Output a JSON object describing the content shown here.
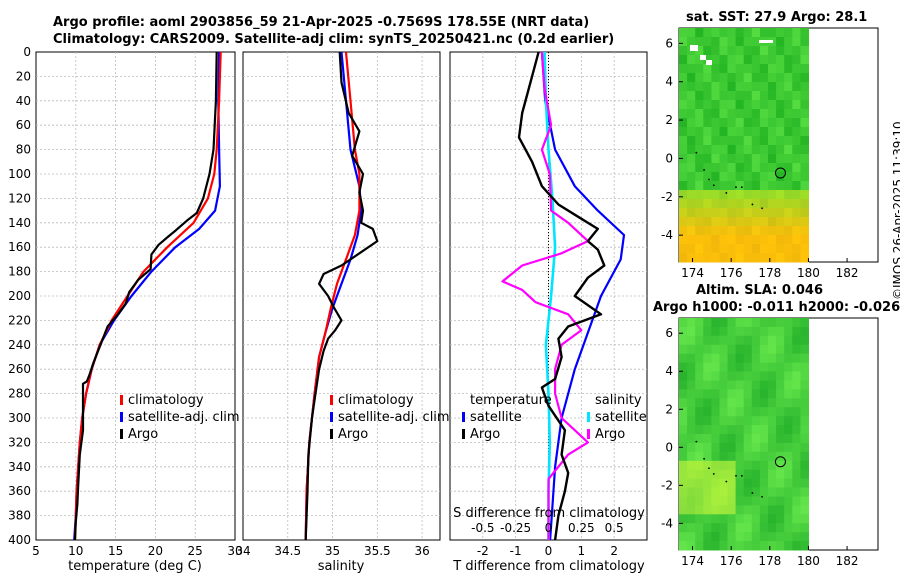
{
  "title": {
    "line1": "Argo profile: aoml 2903856_59 21-Apr-2025 -0.7569S 178.55E (NRT data)",
    "line2": "Climatology: CARS2009. Satellite-adj clim: synTS_20250421.nc (0.2d earlier)"
  },
  "colors": {
    "climatology": "#ff0000",
    "satellite": "#0000ff",
    "argo": "#000000",
    "argo_s": "#ff00ff",
    "sat_s": "#00e5ff",
    "map_green": "#33cc33"
  },
  "watermark": "©IMOS 26-Apr-2025 11:39:10",
  "chart_data": [
    {
      "type": "line",
      "id": "temperature",
      "xlabel": "temperature (deg C)",
      "ylim": [
        400,
        0
      ],
      "xlim": [
        5,
        30
      ],
      "xticks": [
        "5",
        "10",
        "15",
        "20",
        "25",
        "30"
      ],
      "yticks": [
        "0",
        "20",
        "40",
        "60",
        "80",
        "100",
        "120",
        "140",
        "160",
        "180",
        "200",
        "220",
        "240",
        "260",
        "280",
        "300",
        "320",
        "340",
        "360",
        "380",
        "400"
      ],
      "series": [
        {
          "name": "climatology",
          "points": [
            [
              28.2,
              0
            ],
            [
              28.0,
              40
            ],
            [
              27.7,
              80
            ],
            [
              27.4,
              100
            ],
            [
              26.6,
              120
            ],
            [
              24.8,
              140
            ],
            [
              21.5,
              160
            ],
            [
              18.5,
              180
            ],
            [
              16.5,
              200
            ],
            [
              14.5,
              220
            ],
            [
              13.0,
              240
            ],
            [
              12.0,
              260
            ],
            [
              11.3,
              280
            ],
            [
              10.8,
              300
            ],
            [
              10.5,
              320
            ],
            [
              10.3,
              340
            ],
            [
              10.1,
              360
            ],
            [
              10.0,
              380
            ],
            [
              9.9,
              400
            ]
          ]
        },
        {
          "name": "satellite-adj. clim",
          "points": [
            [
              28.0,
              0
            ],
            [
              27.9,
              40
            ],
            [
              28.0,
              80
            ],
            [
              28.1,
              110
            ],
            [
              27.5,
              130
            ],
            [
              25.5,
              145
            ],
            [
              22.5,
              160
            ],
            [
              19.5,
              180
            ],
            [
              17.0,
              200
            ],
            [
              14.8,
              220
            ],
            [
              13.0,
              240
            ],
            [
              12.0,
              260
            ],
            [
              11.3,
              280
            ],
            [
              10.8,
              300
            ],
            [
              10.5,
              320
            ],
            [
              10.3,
              340
            ],
            [
              10.1,
              360
            ],
            [
              10.0,
              380
            ],
            [
              9.8,
              400
            ]
          ]
        },
        {
          "name": "Argo",
          "points": [
            [
              27.7,
              0
            ],
            [
              27.6,
              40
            ],
            [
              27.3,
              80
            ],
            [
              26.8,
              100
            ],
            [
              26.0,
              120
            ],
            [
              25.2,
              132
            ],
            [
              24.0,
              138
            ],
            [
              22.6,
              146
            ],
            [
              21.5,
              152
            ],
            [
              20.4,
              158
            ],
            [
              19.5,
              166
            ],
            [
              19.4,
              178
            ],
            [
              17.8,
              187
            ],
            [
              16.7,
              197
            ],
            [
              16.3,
              206
            ],
            [
              15.3,
              215
            ],
            [
              14.0,
              225
            ],
            [
              13.1,
              240
            ],
            [
              12.2,
              255
            ],
            [
              11.7,
              265
            ],
            [
              11.4,
              270
            ],
            [
              10.9,
              272
            ],
            [
              10.9,
              310
            ],
            [
              10.5,
              330
            ],
            [
              10.3,
              355
            ],
            [
              10.2,
              370
            ],
            [
              10.0,
              385
            ],
            [
              9.9,
              400
            ]
          ]
        }
      ],
      "legend": [
        "climatology",
        "satellite-adj. clim",
        "Argo"
      ]
    },
    {
      "type": "line",
      "id": "salinity",
      "xlabel": "salinity",
      "ylim": [
        400,
        0
      ],
      "xlim": [
        34,
        36.2
      ],
      "xticks": [
        "34",
        "34.5",
        "35",
        "35.5",
        "36"
      ],
      "series": [
        {
          "name": "climatology",
          "points": [
            [
              35.15,
              0
            ],
            [
              35.2,
              40
            ],
            [
              35.25,
              80
            ],
            [
              35.3,
              100
            ],
            [
              35.3,
              130
            ],
            [
              35.25,
              150
            ],
            [
              35.15,
              170
            ],
            [
              35.05,
              190
            ],
            [
              34.98,
              210
            ],
            [
              34.92,
              230
            ],
            [
              34.85,
              250
            ],
            [
              34.8,
              280
            ],
            [
              34.74,
              320
            ],
            [
              34.71,
              360
            ],
            [
              34.7,
              400
            ]
          ]
        },
        {
          "name": "satellite-adj. clim",
          "points": [
            [
              35.1,
              0
            ],
            [
              35.15,
              40
            ],
            [
              35.2,
              80
            ],
            [
              35.3,
              110
            ],
            [
              35.32,
              130
            ],
            [
              35.28,
              150
            ],
            [
              35.2,
              170
            ],
            [
              35.1,
              190
            ],
            [
              35.0,
              210
            ],
            [
              34.92,
              230
            ],
            [
              34.85,
              250
            ],
            [
              34.8,
              280
            ],
            [
              34.74,
              320
            ],
            [
              34.71,
              360
            ],
            [
              34.7,
              400
            ]
          ]
        },
        {
          "name": "Argo",
          "points": [
            [
              35.08,
              0
            ],
            [
              35.1,
              25
            ],
            [
              35.18,
              50
            ],
            [
              35.3,
              65
            ],
            [
              35.22,
              85
            ],
            [
              35.34,
              100
            ],
            [
              35.3,
              115
            ],
            [
              35.34,
              130
            ],
            [
              35.32,
              140
            ],
            [
              35.45,
              145
            ],
            [
              35.5,
              155
            ],
            [
              35.3,
              165
            ],
            [
              35.1,
              175
            ],
            [
              34.9,
              182
            ],
            [
              34.85,
              190
            ],
            [
              34.95,
              200
            ],
            [
              35.02,
              210
            ],
            [
              35.1,
              220
            ],
            [
              35.03,
              228
            ],
            [
              34.95,
              235
            ],
            [
              34.9,
              245
            ],
            [
              34.85,
              260
            ],
            [
              34.8,
              285
            ],
            [
              34.77,
              300
            ],
            [
              34.73,
              330
            ],
            [
              34.72,
              360
            ],
            [
              34.7,
              400
            ]
          ]
        }
      ],
      "legend": [
        "climatology",
        "satellite-adj. clim",
        "Argo"
      ]
    },
    {
      "type": "line",
      "id": "difference",
      "xlabel": "T difference from climatology",
      "xlabel2": "S difference from climatology",
      "ylim": [
        400,
        0
      ],
      "xlim": [
        -3,
        3
      ],
      "xticks": [
        "-2",
        "-1",
        "0",
        "1",
        "2"
      ],
      "xticks2": [
        "-0.5",
        "-0.25",
        "0",
        "0.25",
        "0.5"
      ],
      "series": [
        {
          "name": "T satellite",
          "points": [
            [
              -0.2,
              0
            ],
            [
              -0.1,
              40
            ],
            [
              0.2,
              80
            ],
            [
              0.8,
              110
            ],
            [
              1.5,
              130
            ],
            [
              2.3,
              150
            ],
            [
              2.2,
              170
            ],
            [
              1.6,
              200
            ],
            [
              1.2,
              230
            ],
            [
              0.8,
              260
            ],
            [
              0.4,
              300
            ],
            [
              0.2,
              340
            ],
            [
              0.1,
              380
            ],
            [
              0.05,
              400
            ]
          ]
        },
        {
          "name": "T Argo",
          "points": [
            [
              -0.3,
              0
            ],
            [
              -0.6,
              30
            ],
            [
              -0.8,
              50
            ],
            [
              -0.9,
              70
            ],
            [
              -0.5,
              90
            ],
            [
              -0.2,
              110
            ],
            [
              0.3,
              125
            ],
            [
              0.9,
              135
            ],
            [
              1.5,
              145
            ],
            [
              1.2,
              155
            ],
            [
              1.5,
              162
            ],
            [
              1.7,
              175
            ],
            [
              1.2,
              185
            ],
            [
              0.8,
              200
            ],
            [
              1.6,
              215
            ],
            [
              0.6,
              225
            ],
            [
              0.3,
              235
            ],
            [
              0.4,
              250
            ],
            [
              0.2,
              268
            ],
            [
              -0.2,
              275
            ],
            [
              0.0,
              290
            ],
            [
              0.5,
              310
            ],
            [
              0.4,
              330
            ],
            [
              0.6,
              345
            ],
            [
              0.5,
              360
            ],
            [
              0.3,
              380
            ],
            [
              0.2,
              400
            ]
          ]
        },
        {
          "name": "S satellite",
          "points": [
            [
              -0.03,
              0
            ],
            [
              -0.02,
              40
            ],
            [
              0.0,
              80
            ],
            [
              0.03,
              120
            ],
            [
              0.05,
              160
            ],
            [
              0.02,
              200
            ],
            [
              -0.02,
              240
            ],
            [
              0.0,
              280
            ],
            [
              0.01,
              320
            ],
            [
              0.0,
              360
            ],
            [
              0.0,
              400
            ]
          ]
        },
        {
          "name": "S Argo",
          "points": [
            [
              -0.05,
              0
            ],
            [
              -0.03,
              30
            ],
            [
              0.02,
              60
            ],
            [
              -0.05,
              80
            ],
            [
              0.01,
              100
            ],
            [
              0.02,
              130
            ],
            [
              0.15,
              140
            ],
            [
              0.3,
              155
            ],
            [
              0.1,
              165
            ],
            [
              -0.2,
              175
            ],
            [
              -0.35,
              188
            ],
            [
              -0.2,
              195
            ],
            [
              -0.1,
              205
            ],
            [
              0.15,
              215
            ],
            [
              0.25,
              228
            ],
            [
              0.1,
              240
            ],
            [
              0.05,
              260
            ],
            [
              0.05,
              280
            ],
            [
              0.1,
              300
            ],
            [
              0.2,
              310
            ],
            [
              0.3,
              320
            ],
            [
              0.15,
              330
            ],
            [
              0.0,
              350
            ],
            [
              0.0,
              380
            ],
            [
              0.0,
              400
            ]
          ]
        }
      ],
      "legend": {
        "temperature_header": "temperature",
        "salinity_header": "salinity",
        "t_items": [
          "satellite",
          "Argo"
        ],
        "s_items": [
          "satellite",
          "Argo"
        ]
      }
    },
    {
      "type": "heatmap",
      "id": "sst_map",
      "title": "sat. SST: 27.9 Argo: 28.1",
      "xticks": [
        "174",
        "176",
        "178",
        "180",
        "182"
      ],
      "yticks": [
        "6",
        "4",
        "2",
        "0",
        "-2",
        "-4"
      ],
      "argo_position": [
        178.55,
        -0.7569
      ]
    },
    {
      "type": "heatmap",
      "id": "sla_map",
      "title1": "Altim. SLA: 0.046",
      "title2": "Argo h1000: -0.011 h2000: -0.026",
      "xticks": [
        "174",
        "176",
        "178",
        "180",
        "182"
      ],
      "yticks": [
        "6",
        "4",
        "2",
        "0",
        "-2",
        "-4"
      ],
      "argo_position": [
        178.55,
        -0.7569
      ]
    }
  ]
}
